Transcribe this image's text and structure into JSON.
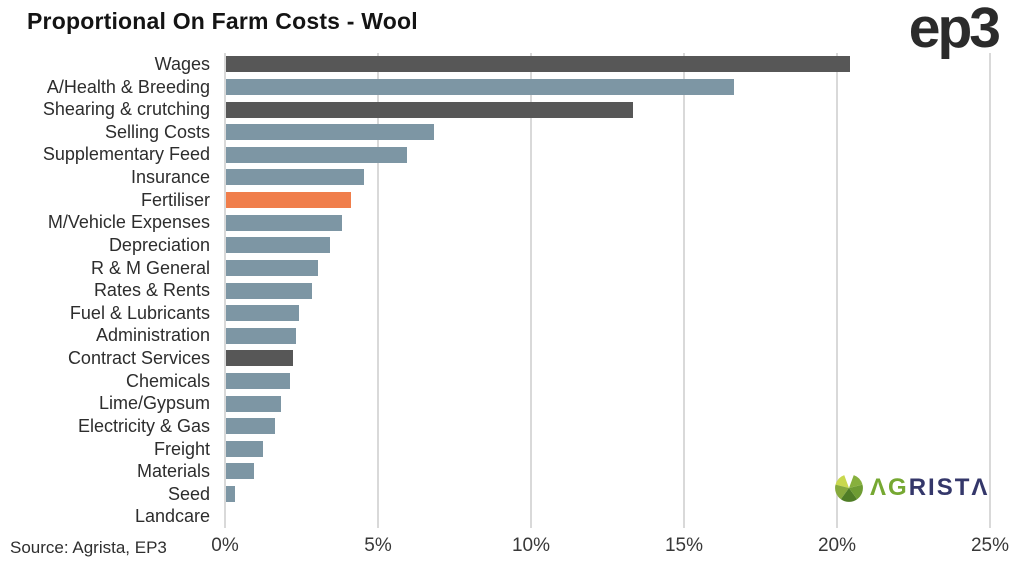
{
  "header": {
    "title": "Proportional On Farm Costs - Wool",
    "ep3_logo_text": "ep3"
  },
  "footer": {
    "source": "Source: Agrista, EP3"
  },
  "agrista_logo": {
    "icon": "leaf-fan-icon",
    "text_green": "ΛG",
    "text_navy": "RISTΛ"
  },
  "chart_data": {
    "type": "bar",
    "orientation": "horizontal",
    "title": "Proportional On Farm Costs - Wool",
    "categories": [
      "Wages",
      "A/Health & Breeding",
      "Shearing & crutching",
      "Selling Costs",
      "Supplementary Feed",
      "Insurance",
      "Fertiliser",
      "M/Vehicle Expenses",
      "Depreciation",
      "R & M General",
      "Rates & Rents",
      "Fuel & Lubricants",
      "Administration",
      "Contract Services",
      "Chemicals",
      "Lime/Gypsum",
      "Electricity & Gas",
      "Freight",
      "Materials",
      "Seed",
      "Landcare"
    ],
    "values": [
      20.4,
      16.6,
      13.3,
      6.8,
      5.9,
      4.5,
      4.1,
      3.8,
      3.4,
      3.0,
      2.8,
      2.4,
      2.3,
      2.2,
      2.1,
      1.8,
      1.6,
      1.2,
      0.9,
      0.3,
      0.0
    ],
    "bar_roles": [
      "dark",
      "blue",
      "dark",
      "blue",
      "blue",
      "blue",
      "orange",
      "blue",
      "blue",
      "blue",
      "blue",
      "blue",
      "blue",
      "dark",
      "blue",
      "blue",
      "blue",
      "blue",
      "blue",
      "blue",
      "blue"
    ],
    "colors": {
      "dark": "#575757",
      "blue": "#7d96a4",
      "orange": "#f07e4b",
      "gridline": "#d9d9d9"
    },
    "x_ticks": [
      "0%",
      "5%",
      "10%",
      "15%",
      "20%",
      "25%"
    ],
    "xlim": [
      0,
      25
    ],
    "xlabel": "",
    "ylabel": "",
    "legend": "none",
    "grid": "vertical"
  }
}
